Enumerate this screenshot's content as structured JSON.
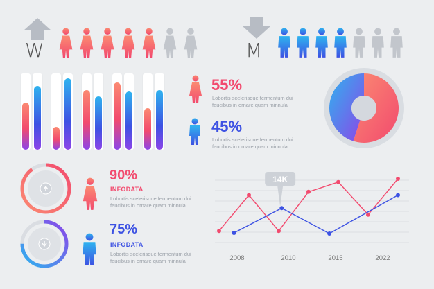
{
  "colors": {
    "pink": "#f24a6e",
    "coral": "#fb8a72",
    "blue": "#3d52e3",
    "purple": "#8c45e8",
    "cyan": "#2fb3ef",
    "gray_icon": "#c2c6cc",
    "background": "#eceef0"
  },
  "women": {
    "letter": "W",
    "filled_count": 5,
    "total_count": 7
  },
  "men": {
    "letter": "M",
    "filled_count": 4,
    "total_count": 7
  },
  "stats": {
    "women_pct": "55%",
    "women_text_1": "Lobortis scelerisque fermentum dui",
    "women_text_2": "faucibus in ornare quam minnula",
    "men_pct": "45%",
    "men_text_1": "Lobortis scelerisque fermentum dui",
    "men_text_2": "faucibus in ornare quam minnula"
  },
  "progress": {
    "women_pct": "90%",
    "women_label": "INFODATA",
    "women_value": 0.9,
    "women_text_1": "Lobortis scelerisque fermentum dui",
    "women_text_2": "faucibus in ornare quam minnula",
    "men_pct": "75%",
    "men_label": "INFODATA",
    "men_value": 0.75,
    "men_text_1": "Lobortis scelerisque fermentum dui",
    "men_text_2": "faucibus in ornare quam minnula"
  },
  "chart_data": [
    {
      "type": "bar",
      "series": [
        {
          "values": [
            0.62,
            0.3,
            0.78,
            0.88,
            0.55
          ]
        },
        {
          "values": [
            0.84,
            0.94,
            0.7,
            0.76,
            0.78
          ]
        }
      ],
      "ylim": [
        0,
        1
      ]
    },
    {
      "type": "pie",
      "slices": [
        {
          "label": "women",
          "value": 55
        },
        {
          "label": "men",
          "value": 45
        }
      ]
    },
    {
      "type": "line",
      "x_ticks": [
        "2008",
        "2010",
        "2015",
        "2022"
      ],
      "annotation": "14K",
      "series": [
        {
          "color": "#f24a6e",
          "points": [
            [
              0,
              0.2
            ],
            [
              1,
              0.75
            ],
            [
              2,
              0.2
            ],
            [
              3,
              0.8
            ],
            [
              4,
              0.95
            ],
            [
              5,
              0.45
            ],
            [
              6,
              1.0
            ]
          ]
        },
        {
          "color": "#3d52e3",
          "points": [
            [
              0.5,
              0.17
            ],
            [
              2.1,
              0.55
            ],
            [
              3.7,
              0.16
            ],
            [
              6,
              0.75
            ]
          ]
        }
      ]
    }
  ]
}
